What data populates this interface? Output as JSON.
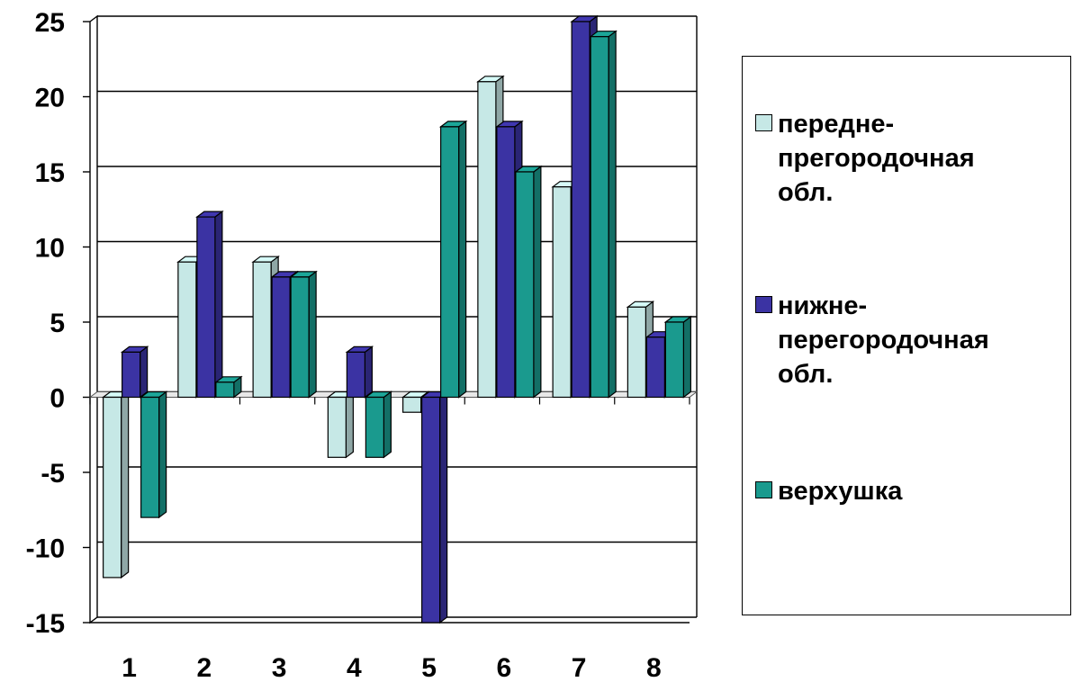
{
  "chart_data": {
    "type": "bar",
    "categories": [
      "1",
      "2",
      "3",
      "4",
      "5",
      "6",
      "7",
      "8"
    ],
    "series": [
      {
        "name": "передне-\nпрегородочная\nобл.",
        "values": [
          -12,
          9,
          9,
          -4,
          -1,
          21,
          14,
          6
        ],
        "color": "#c6e8e6"
      },
      {
        "name": "нижне-\nперегородочная\nобл.",
        "values": [
          3,
          12,
          8,
          3,
          -15,
          18,
          25,
          4
        ],
        "color": "#3b33a3"
      },
      {
        "name": "верхушка",
        "values": [
          -8,
          1,
          8,
          -4,
          18,
          15,
          24,
          5
        ],
        "color": "#1a9a8e"
      }
    ],
    "yticks": [
      "25",
      "20",
      "15",
      "10",
      "5",
      "0",
      "-5",
      "-10",
      "-15"
    ],
    "ylim": [
      -15,
      25
    ],
    "grid": true,
    "legend": "right",
    "title": "",
    "xlabel": "",
    "ylabel": ""
  }
}
